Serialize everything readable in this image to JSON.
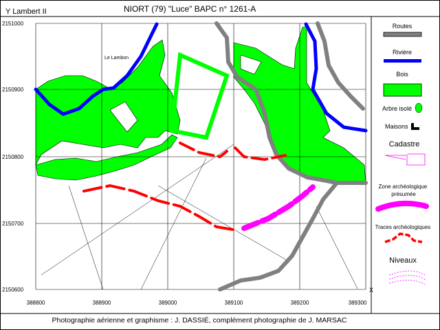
{
  "header": {
    "y_label": "Y Lambert II",
    "title": "NIORT  (79)  \"Luce\"    BAPC n° 1261-A"
  },
  "map": {
    "place_label": "Le Lambon",
    "y_ticks": [
      "2151000",
      "2150900",
      "2150800",
      "2150700",
      "2150600"
    ],
    "x_ticks": [
      "388800",
      "388900",
      "389000",
      "389100",
      "389200",
      "389300"
    ],
    "x_axis_label": "X"
  },
  "legend": {
    "items": [
      {
        "label": "Routes",
        "icon": "road-swatch",
        "color": "#808080"
      },
      {
        "label": "Rivière",
        "icon": "river-swatch",
        "color": "#0000ff"
      },
      {
        "label": "Bois",
        "icon": "wood-swatch",
        "color": "#00ff00"
      },
      {
        "label": "Arbre isolé",
        "icon": "tree-icon",
        "color": "#00ff00"
      },
      {
        "label": "Maisons",
        "icon": "house-icon",
        "color": "#000000"
      },
      {
        "label": "Cadastre",
        "icon": "cadastre-swatch",
        "color": "#ff00ff"
      },
      {
        "label": "Zone archéologique présumée",
        "icon": "zone-swatch",
        "color": "#ff00ff"
      },
      {
        "label": "Traces archéologiques",
        "icon": "traces-swatch",
        "color": "#ff0000"
      },
      {
        "label": "Niveaux",
        "icon": "levels-swatch",
        "color": "#ff00ff"
      }
    ]
  },
  "footer": {
    "credit": "Photographie aérienne et graphisme : J. DASSIÉ, complément photographie de J. MARSAC"
  }
}
